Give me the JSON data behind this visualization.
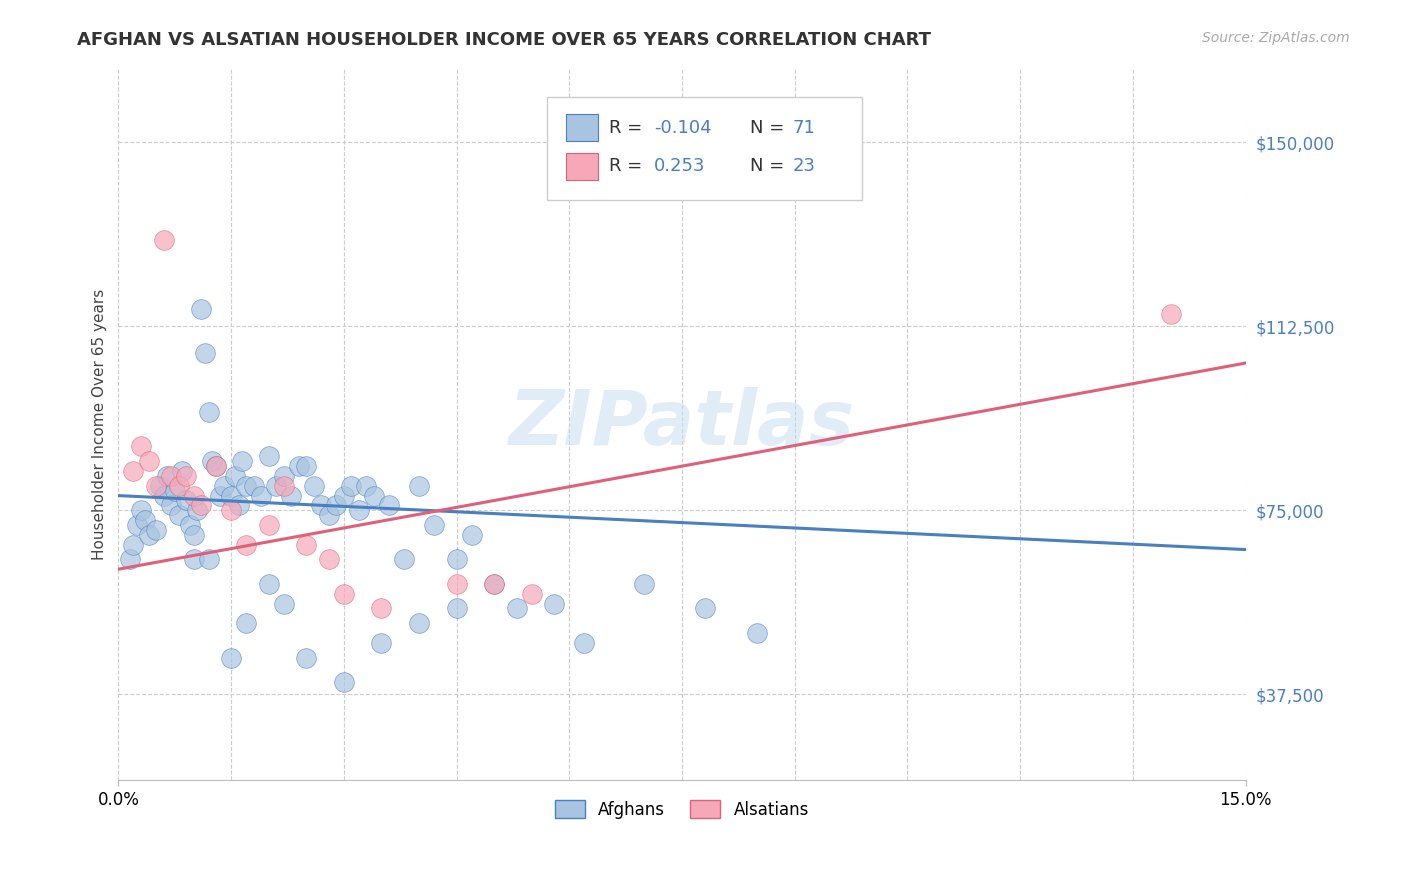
{
  "title": "AFGHAN VS ALSATIAN HOUSEHOLDER INCOME OVER 65 YEARS CORRELATION CHART",
  "source": "Source: ZipAtlas.com",
  "ylabel": "Householder Income Over 65 years",
  "xlim": [
    0.0,
    15.0
  ],
  "ylim": [
    20000,
    165000
  ],
  "yticks": [
    37500,
    75000,
    112500,
    150000
  ],
  "ytick_labels": [
    "$37,500",
    "$75,000",
    "$112,500",
    "$150,000"
  ],
  "legend_labels": [
    "Afghans",
    "Alsatians"
  ],
  "afghan_color": "#a8c4e0",
  "alsatian_color": "#f4a8b8",
  "afghan_line_color": "#4a7fc1",
  "alsatian_line_color": "#e0607a",
  "r_afghan": -0.104,
  "n_afghan": 71,
  "r_alsatian": 0.253,
  "n_alsatian": 23,
  "watermark": "ZIPatlas",
  "afghan_line_y0": 78000,
  "afghan_line_y1": 67000,
  "alsatian_line_y0": 63000,
  "alsatian_line_y1": 105000,
  "afghans_x": [
    0.15,
    0.2,
    0.25,
    0.3,
    0.35,
    0.4,
    0.5,
    0.55,
    0.6,
    0.65,
    0.7,
    0.75,
    0.8,
    0.85,
    0.9,
    0.95,
    1.0,
    1.05,
    1.1,
    1.15,
    1.2,
    1.25,
    1.3,
    1.35,
    1.4,
    1.5,
    1.55,
    1.6,
    1.65,
    1.7,
    1.8,
    1.9,
    2.0,
    2.1,
    2.2,
    2.3,
    2.4,
    2.5,
    2.6,
    2.7,
    2.8,
    2.9,
    3.0,
    3.1,
    3.2,
    3.3,
    3.4,
    3.6,
    3.8,
    4.0,
    4.2,
    4.5,
    4.7,
    5.0,
    5.3,
    5.8,
    6.2,
    7.0,
    7.8,
    8.5,
    1.0,
    1.2,
    1.5,
    1.7,
    2.0,
    2.2,
    2.5,
    3.0,
    3.5,
    4.0,
    4.5
  ],
  "afghans_y": [
    65000,
    68000,
    72000,
    75000,
    73000,
    70000,
    71000,
    80000,
    78000,
    82000,
    76000,
    79000,
    74000,
    83000,
    77000,
    72000,
    70000,
    75000,
    116000,
    107000,
    95000,
    85000,
    84000,
    78000,
    80000,
    78000,
    82000,
    76000,
    85000,
    80000,
    80000,
    78000,
    86000,
    80000,
    82000,
    78000,
    84000,
    84000,
    80000,
    76000,
    74000,
    76000,
    78000,
    80000,
    75000,
    80000,
    78000,
    76000,
    65000,
    80000,
    72000,
    65000,
    70000,
    60000,
    55000,
    56000,
    48000,
    60000,
    55000,
    50000,
    65000,
    65000,
    45000,
    52000,
    60000,
    56000,
    45000,
    40000,
    48000,
    52000,
    55000
  ],
  "alsatians_x": [
    0.2,
    0.3,
    0.4,
    0.5,
    0.6,
    0.7,
    0.8,
    0.9,
    1.0,
    1.1,
    1.3,
    1.5,
    1.7,
    2.0,
    2.2,
    2.5,
    2.8,
    3.0,
    3.5,
    4.5,
    5.0,
    5.5,
    14.0
  ],
  "alsatians_y": [
    83000,
    88000,
    85000,
    80000,
    130000,
    82000,
    80000,
    82000,
    78000,
    76000,
    84000,
    75000,
    68000,
    72000,
    80000,
    68000,
    65000,
    58000,
    55000,
    60000,
    60000,
    58000,
    115000
  ]
}
